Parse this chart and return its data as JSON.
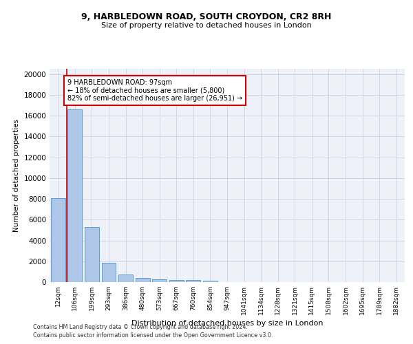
{
  "title1": "9, HARBLEDOWN ROAD, SOUTH CROYDON, CR2 8RH",
  "title2": "Size of property relative to detached houses in London",
  "xlabel": "Distribution of detached houses by size in London",
  "ylabel": "Number of detached properties",
  "categories": [
    "12sqm",
    "106sqm",
    "199sqm",
    "293sqm",
    "386sqm",
    "480sqm",
    "573sqm",
    "667sqm",
    "760sqm",
    "854sqm",
    "947sqm",
    "1041sqm",
    "1134sqm",
    "1228sqm",
    "1321sqm",
    "1415sqm",
    "1508sqm",
    "1602sqm",
    "1695sqm",
    "1789sqm",
    "1882sqm"
  ],
  "values": [
    8100,
    16600,
    5300,
    1850,
    700,
    380,
    290,
    220,
    180,
    130,
    0,
    0,
    0,
    0,
    0,
    0,
    0,
    0,
    0,
    0,
    0
  ],
  "bar_color": "#aec6e8",
  "bar_edge_color": "#5a9fd4",
  "vline_color": "#cc0000",
  "annotation_text": "9 HARBLEDOWN ROAD: 97sqm\n← 18% of detached houses are smaller (5,800)\n82% of semi-detached houses are larger (26,951) →",
  "annotation_box_color": "#cc0000",
  "ylim": [
    0,
    20500
  ],
  "yticks": [
    0,
    2000,
    4000,
    6000,
    8000,
    10000,
    12000,
    14000,
    16000,
    18000,
    20000
  ],
  "footer1": "Contains HM Land Registry data © Crown copyright and database right 2024.",
  "footer2": "Contains public sector information licensed under the Open Government Licence v3.0.",
  "grid_color": "#d0d8e8",
  "bg_color": "#eef2f8"
}
